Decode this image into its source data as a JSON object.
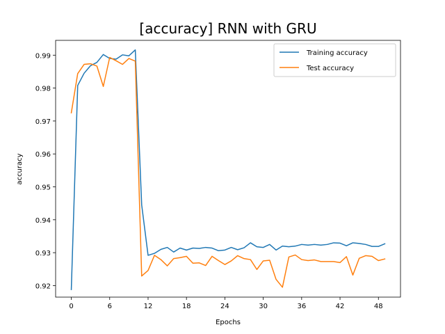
{
  "chart_data": {
    "type": "line",
    "title": "[accuracy] RNN with GRU",
    "xlabel": "Epochs",
    "ylabel": "accuracy",
    "xlim": [
      -2.45,
      51.45
    ],
    "ylim": [
      0.9165,
      0.9945
    ],
    "xticks": [
      0,
      6,
      12,
      18,
      24,
      30,
      36,
      42,
      48
    ],
    "yticks": [
      0.92,
      0.93,
      0.94,
      0.95,
      0.96,
      0.97,
      0.98,
      0.99
    ],
    "ytick_labels": [
      "0.92",
      "0.93",
      "0.94",
      "0.95",
      "0.96",
      "0.97",
      "0.98",
      "0.99"
    ],
    "grid": false,
    "legend_position": "upper right",
    "x": [
      0,
      1,
      2,
      3,
      4,
      5,
      6,
      7,
      8,
      9,
      10,
      11,
      12,
      13,
      14,
      15,
      16,
      17,
      18,
      19,
      20,
      21,
      22,
      23,
      24,
      25,
      26,
      27,
      28,
      29,
      30,
      31,
      32,
      33,
      34,
      35,
      36,
      37,
      38,
      39,
      40,
      41,
      42,
      43,
      44,
      45,
      46,
      47,
      48,
      49
    ],
    "series": [
      {
        "name": "Training accuracy",
        "color": "#1f77b4",
        "values": [
          0.9188,
          0.9808,
          0.9845,
          0.9868,
          0.9878,
          0.9902,
          0.989,
          0.9888,
          0.9901,
          0.9898,
          0.9916,
          0.9445,
          0.9292,
          0.9298,
          0.931,
          0.9316,
          0.9302,
          0.9314,
          0.9308,
          0.9314,
          0.9313,
          0.9316,
          0.9314,
          0.9306,
          0.9308,
          0.9316,
          0.9309,
          0.9315,
          0.933,
          0.9318,
          0.9316,
          0.9325,
          0.9308,
          0.932,
          0.9318,
          0.932,
          0.9325,
          0.9323,
          0.9325,
          0.9323,
          0.9325,
          0.933,
          0.9329,
          0.9321,
          0.933,
          0.9328,
          0.9325,
          0.9319,
          0.9319,
          0.9327
        ]
      },
      {
        "name": "Test accuracy",
        "color": "#ff7f0e",
        "values": [
          0.9725,
          0.9844,
          0.9872,
          0.9874,
          0.9867,
          0.9805,
          0.9893,
          0.9883,
          0.9872,
          0.989,
          0.9882,
          0.9229,
          0.9246,
          0.9292,
          0.9279,
          0.926,
          0.9282,
          0.9285,
          0.9289,
          0.9268,
          0.9269,
          0.9261,
          0.9289,
          0.9276,
          0.9264,
          0.9275,
          0.9291,
          0.9282,
          0.9279,
          0.9249,
          0.9275,
          0.9277,
          0.9219,
          0.9195,
          0.9287,
          0.9293,
          0.9279,
          0.9276,
          0.9278,
          0.9273,
          0.9273,
          0.9273,
          0.927,
          0.9288,
          0.9232,
          0.9283,
          0.9291,
          0.9289,
          0.9276,
          0.9281
        ]
      }
    ]
  }
}
